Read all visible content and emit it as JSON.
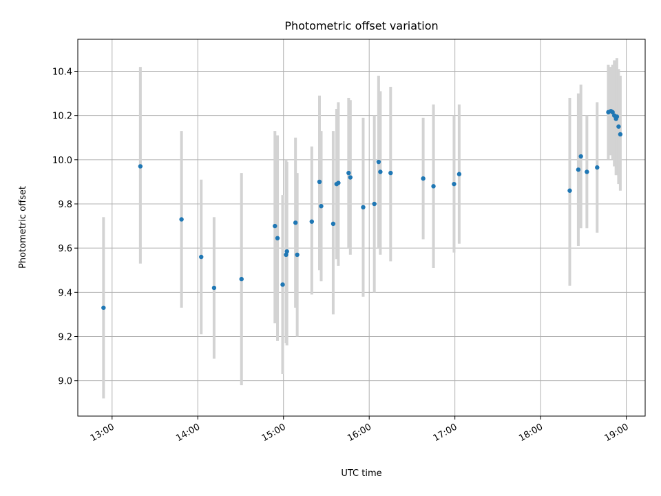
{
  "chart_data": {
    "type": "scatter",
    "title": "Photometric offset variation",
    "xlabel": "UTC time",
    "ylabel": "Photometric offset",
    "x_unit": "hours_utc",
    "xlim": [
      12.6,
      19.22
    ],
    "ylim": [
      8.84,
      10.545
    ],
    "grid": true,
    "xticks": [
      13,
      14,
      15,
      16,
      17,
      18,
      19
    ],
    "xtick_labels": [
      "13:00",
      "14:00",
      "15:00",
      "16:00",
      "17:00",
      "18:00",
      "19:00"
    ],
    "yticks": [
      9.0,
      9.2,
      9.4,
      9.6,
      9.8,
      10.0,
      10.2,
      10.4
    ],
    "ytick_labels": [
      "9.0",
      "9.2",
      "9.4",
      "9.6",
      "9.8",
      "10.0",
      "10.2",
      "10.4"
    ],
    "colors": {
      "point": "#1f77b4",
      "errorbar": "#d3d3d3",
      "grid": "#b0b0b0"
    },
    "points": [
      {
        "x": 12.9,
        "y": 9.33,
        "ylo": 8.92,
        "yhi": 9.74
      },
      {
        "x": 13.33,
        "y": 9.97,
        "ylo": 9.53,
        "yhi": 10.42
      },
      {
        "x": 13.81,
        "y": 9.73,
        "ylo": 9.33,
        "yhi": 10.13
      },
      {
        "x": 14.04,
        "y": 9.56,
        "ylo": 9.21,
        "yhi": 9.91
      },
      {
        "x": 14.19,
        "y": 9.42,
        "ylo": 9.1,
        "yhi": 9.74
      },
      {
        "x": 14.51,
        "y": 9.46,
        "ylo": 8.98,
        "yhi": 9.94
      },
      {
        "x": 14.9,
        "y": 9.7,
        "ylo": 9.26,
        "yhi": 10.13
      },
      {
        "x": 14.93,
        "y": 9.645,
        "ylo": 9.18,
        "yhi": 10.11
      },
      {
        "x": 14.99,
        "y": 9.435,
        "ylo": 9.03,
        "yhi": 9.84
      },
      {
        "x": 15.03,
        "y": 9.57,
        "ylo": 9.17,
        "yhi": 10.0
      },
      {
        "x": 15.04,
        "y": 9.585,
        "ylo": 9.16,
        "yhi": 9.99
      },
      {
        "x": 15.14,
        "y": 9.715,
        "ylo": 9.33,
        "yhi": 10.1
      },
      {
        "x": 15.16,
        "y": 9.57,
        "ylo": 9.2,
        "yhi": 9.94
      },
      {
        "x": 15.33,
        "y": 9.72,
        "ylo": 9.39,
        "yhi": 10.06
      },
      {
        "x": 15.42,
        "y": 9.9,
        "ylo": 9.5,
        "yhi": 10.29
      },
      {
        "x": 15.44,
        "y": 9.79,
        "ylo": 9.45,
        "yhi": 10.13
      },
      {
        "x": 15.58,
        "y": 9.71,
        "ylo": 9.3,
        "yhi": 10.13
      },
      {
        "x": 15.62,
        "y": 9.89,
        "ylo": 9.55,
        "yhi": 10.23
      },
      {
        "x": 15.64,
        "y": 9.895,
        "ylo": 9.52,
        "yhi": 10.26
      },
      {
        "x": 15.76,
        "y": 9.94,
        "ylo": 9.6,
        "yhi": 10.28
      },
      {
        "x": 15.78,
        "y": 9.92,
        "ylo": 9.57,
        "yhi": 10.27
      },
      {
        "x": 15.93,
        "y": 9.785,
        "ylo": 9.38,
        "yhi": 10.19
      },
      {
        "x": 16.06,
        "y": 9.8,
        "ylo": 9.4,
        "yhi": 10.2
      },
      {
        "x": 16.11,
        "y": 9.99,
        "ylo": 9.6,
        "yhi": 10.38
      },
      {
        "x": 16.13,
        "y": 9.945,
        "ylo": 9.57,
        "yhi": 10.31
      },
      {
        "x": 16.25,
        "y": 9.94,
        "ylo": 9.54,
        "yhi": 10.33
      },
      {
        "x": 16.63,
        "y": 9.915,
        "ylo": 9.64,
        "yhi": 10.19
      },
      {
        "x": 16.75,
        "y": 9.88,
        "ylo": 9.51,
        "yhi": 10.25
      },
      {
        "x": 16.99,
        "y": 9.89,
        "ylo": 9.58,
        "yhi": 10.2
      },
      {
        "x": 17.05,
        "y": 9.935,
        "ylo": 9.62,
        "yhi": 10.25
      },
      {
        "x": 18.34,
        "y": 9.86,
        "ylo": 9.43,
        "yhi": 10.28
      },
      {
        "x": 18.44,
        "y": 9.955,
        "ylo": 9.61,
        "yhi": 10.3
      },
      {
        "x": 18.47,
        "y": 10.015,
        "ylo": 9.69,
        "yhi": 10.34
      },
      {
        "x": 18.54,
        "y": 9.945,
        "ylo": 9.69,
        "yhi": 10.2
      },
      {
        "x": 18.66,
        "y": 9.965,
        "ylo": 9.67,
        "yhi": 10.26
      },
      {
        "x": 18.79,
        "y": 10.215,
        "ylo": 10.0,
        "yhi": 10.43
      },
      {
        "x": 18.82,
        "y": 10.22,
        "ylo": 10.02,
        "yhi": 10.42
      },
      {
        "x": 18.84,
        "y": 10.215,
        "ylo": 10.0,
        "yhi": 10.43
      },
      {
        "x": 18.86,
        "y": 10.2,
        "ylo": 9.97,
        "yhi": 10.45
      },
      {
        "x": 18.88,
        "y": 10.185,
        "ylo": 9.93,
        "yhi": 10.45
      },
      {
        "x": 18.89,
        "y": 10.195,
        "ylo": 9.96,
        "yhi": 10.46
      },
      {
        "x": 18.91,
        "y": 10.15,
        "ylo": 9.89,
        "yhi": 10.41
      },
      {
        "x": 18.93,
        "y": 10.115,
        "ylo": 9.86,
        "yhi": 10.38
      }
    ]
  }
}
